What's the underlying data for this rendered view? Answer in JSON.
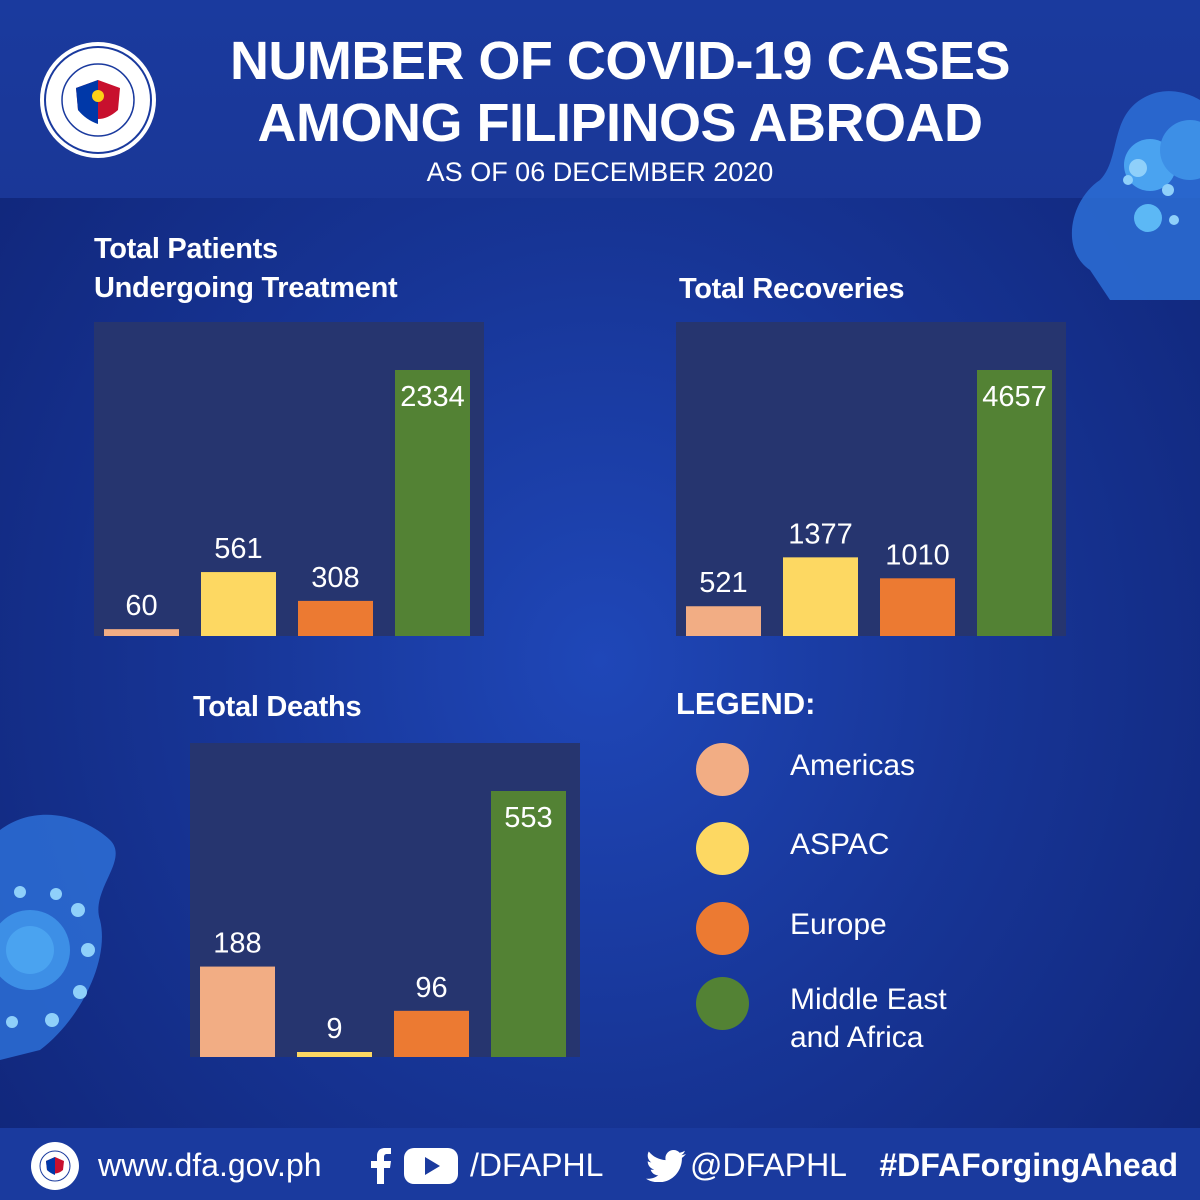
{
  "header": {
    "title_line1": "NUMBER OF  COVID-19 CASES",
    "title_line2": "AMONG FILIPINOS ABROAD",
    "subtitle": "AS OF 06 DECEMBER 2020"
  },
  "colors": {
    "americas": "#f2ad84",
    "aspac": "#fdd862",
    "europe": "#ec7a32",
    "middle_east_africa": "#538234",
    "panel": "#26356f"
  },
  "chart_data": [
    {
      "type": "bar",
      "title": "Total Patients Undergoing Treatment",
      "title_line1": "Total Patients",
      "title_line2": "Undergoing Treatment",
      "categories": [
        "Americas",
        "ASPAC",
        "Europe",
        "Middle East and Africa"
      ],
      "values": [
        60,
        561,
        308,
        2334
      ],
      "labels": [
        "60",
        "561",
        "308",
        "2334"
      ]
    },
    {
      "type": "bar",
      "title": "Total Recoveries",
      "categories": [
        "Americas",
        "ASPAC",
        "Europe",
        "Middle East and Africa"
      ],
      "values": [
        521,
        1377,
        1010,
        4657
      ],
      "labels": [
        "521",
        "1377",
        "1010",
        "4657"
      ]
    },
    {
      "type": "bar",
      "title": "Total Deaths",
      "categories": [
        "Americas",
        "ASPAC",
        "Europe",
        "Middle East and Africa"
      ],
      "values": [
        188,
        9,
        96,
        553
      ],
      "labels": [
        "188",
        "9",
        "96",
        "553"
      ]
    }
  ],
  "legend": {
    "title": "LEGEND:",
    "items": [
      {
        "label": "Americas",
        "label_line2": ""
      },
      {
        "label": "ASPAC",
        "label_line2": ""
      },
      {
        "label": "Europe",
        "label_line2": ""
      },
      {
        "label": "Middle East",
        "label_line2": "and Africa"
      }
    ]
  },
  "footer": {
    "website": "www.dfa.gov.ph",
    "social_handle": "/DFAPHL",
    "twitter_handle": "@DFAPHL",
    "hashtag": "#DFAForgingAhead",
    "icons": [
      "dfa-seal-icon",
      "facebook-icon",
      "youtube-icon",
      "twitter-icon"
    ]
  }
}
